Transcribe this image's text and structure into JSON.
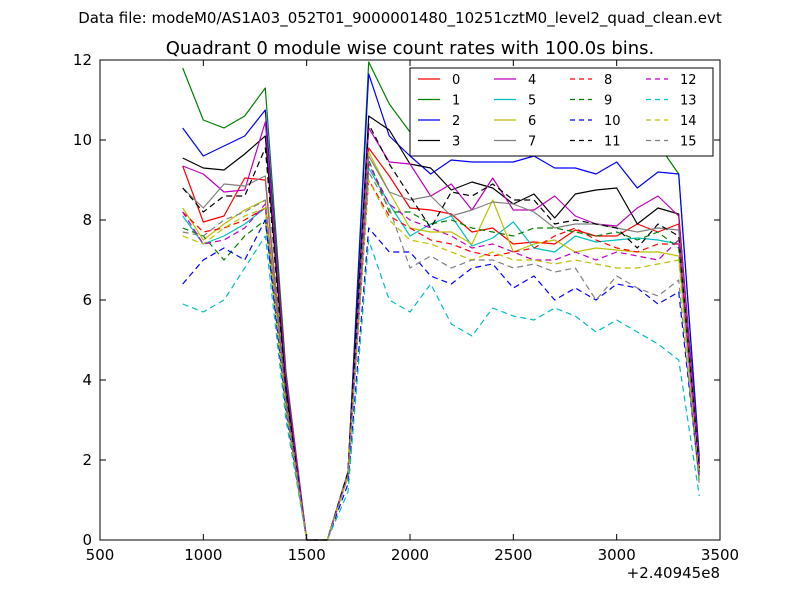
{
  "suptitle": "Data file: modeM0/AS1A03_052T01_9000001480_10251cztM0_level2_quad_clean.evt",
  "chart_data": {
    "type": "line",
    "title": "Quadrant 0 module wise count rates with 100.0s bins.",
    "xlabel": "",
    "ylabel": "",
    "x_offset_label": "+2.40945e8",
    "xlim": [
      500,
      3500
    ],
    "ylim": [
      0,
      12
    ],
    "xticks": [
      500,
      1000,
      1500,
      2000,
      2500,
      3000,
      3500
    ],
    "yticks": [
      0,
      2,
      4,
      6,
      8,
      10,
      12
    ],
    "grid": false,
    "legend_position": "top-right",
    "legend_columns": 4,
    "x": [
      900,
      1000,
      1100,
      1200,
      1300,
      1400,
      1500,
      1600,
      1700,
      1800,
      1900,
      2000,
      2100,
      2200,
      2300,
      2400,
      2500,
      2600,
      2700,
      2800,
      2900,
      3000,
      3100,
      3200,
      3300,
      3400
    ],
    "series": [
      {
        "name": "0",
        "color": "#ff0000",
        "dash": "solid",
        "values": [
          9.35,
          7.95,
          8.1,
          9.05,
          9.0,
          3.5,
          0,
          0,
          1.7,
          9.8,
          9.1,
          8.3,
          8.25,
          8.15,
          7.7,
          7.8,
          7.4,
          7.45,
          7.4,
          7.75,
          7.6,
          7.6,
          7.9,
          7.7,
          7.9,
          1.8
        ]
      },
      {
        "name": "1",
        "color": "#008000",
        "dash": "solid",
        "values": [
          11.8,
          10.5,
          10.3,
          10.6,
          11.3,
          4.2,
          0,
          0,
          1.7,
          11.95,
          10.9,
          10.2,
          9.85,
          9.9,
          9.95,
          10.0,
          9.6,
          9.85,
          10.2,
          9.9,
          9.75,
          9.9,
          9.65,
          9.9,
          9.15,
          2.1
        ]
      },
      {
        "name": "2",
        "color": "#0000ff",
        "dash": "solid",
        "values": [
          10.3,
          9.6,
          9.85,
          10.1,
          10.75,
          4.0,
          0,
          0,
          1.7,
          11.65,
          10.1,
          9.6,
          9.15,
          9.5,
          9.45,
          9.45,
          9.45,
          9.6,
          9.3,
          9.3,
          9.15,
          9.45,
          8.8,
          9.2,
          9.15,
          2.0
        ]
      },
      {
        "name": "3",
        "color": "#000000",
        "dash": "solid",
        "values": [
          9.55,
          9.3,
          9.25,
          9.65,
          10.1,
          3.8,
          0,
          0,
          1.7,
          10.6,
          10.25,
          9.4,
          9.3,
          8.75,
          8.95,
          8.8,
          8.4,
          8.65,
          8.05,
          8.65,
          8.75,
          8.8,
          7.9,
          8.3,
          8.15,
          1.9
        ]
      },
      {
        "name": "4",
        "color": "#bf00bf",
        "dash": "solid",
        "values": [
          9.35,
          9.15,
          8.7,
          8.75,
          10.45,
          4.1,
          0,
          0,
          1.7,
          10.3,
          9.45,
          9.4,
          8.6,
          8.9,
          8.25,
          9.05,
          8.25,
          8.25,
          8.6,
          8.1,
          7.9,
          7.85,
          8.3,
          8.6,
          8.1,
          1.9
        ]
      },
      {
        "name": "5",
        "color": "#00bfbf",
        "dash": "solid",
        "values": [
          8.1,
          7.4,
          7.6,
          7.9,
          8.3,
          3.3,
          0,
          0,
          1.7,
          9.3,
          8.4,
          7.6,
          7.9,
          8.1,
          7.35,
          7.55,
          7.95,
          7.3,
          7.2,
          7.6,
          7.45,
          7.5,
          7.55,
          7.5,
          7.4,
          1.7
        ]
      },
      {
        "name": "6",
        "color": "#bfbf00",
        "dash": "solid",
        "values": [
          8.3,
          7.5,
          7.9,
          8.25,
          8.5,
          3.4,
          0,
          0,
          1.7,
          9.7,
          8.7,
          7.8,
          7.7,
          7.7,
          7.4,
          8.5,
          7.2,
          7.4,
          7.5,
          7.2,
          7.3,
          7.25,
          7.2,
          7.2,
          7.1,
          1.6
        ]
      },
      {
        "name": "7",
        "color": "#808080",
        "dash": "solid",
        "values": [
          8.8,
          8.3,
          8.9,
          8.85,
          9.1,
          3.6,
          0,
          0,
          1.7,
          9.6,
          8.7,
          8.5,
          8.6,
          8.1,
          8.25,
          8.45,
          8.4,
          8.2,
          7.8,
          7.9,
          7.9,
          7.8,
          7.7,
          7.8,
          7.75,
          1.7
        ]
      },
      {
        "name": "8",
        "color": "#ff0000",
        "dash": "dashed",
        "values": [
          8.2,
          7.7,
          7.8,
          8.0,
          8.3,
          3.4,
          0,
          0,
          1.6,
          9.0,
          8.1,
          7.8,
          7.5,
          7.4,
          7.2,
          7.1,
          7.2,
          7.3,
          7.6,
          7.8,
          7.5,
          7.3,
          7.2,
          7.4,
          7.4,
          1.6
        ]
      },
      {
        "name": "9",
        "color": "#008000",
        "dash": "dashed",
        "values": [
          7.8,
          7.6,
          7.0,
          7.6,
          8.0,
          3.3,
          0,
          0,
          1.6,
          9.5,
          8.2,
          8.2,
          7.9,
          8.0,
          7.8,
          7.7,
          7.6,
          7.8,
          7.8,
          7.7,
          7.6,
          7.7,
          7.5,
          7.7,
          7.3,
          1.6
        ]
      },
      {
        "name": "10",
        "color": "#0000ff",
        "dash": "dashed",
        "values": [
          6.4,
          7.0,
          7.3,
          7.0,
          8.0,
          3.2,
          0,
          0,
          1.4,
          7.8,
          7.2,
          7.2,
          6.6,
          6.4,
          6.8,
          6.9,
          6.3,
          6.6,
          6.0,
          6.3,
          6.0,
          6.4,
          6.3,
          5.9,
          6.2,
          1.5
        ]
      },
      {
        "name": "11",
        "color": "#000000",
        "dash": "dashed",
        "values": [
          8.8,
          8.2,
          8.6,
          8.6,
          9.8,
          3.7,
          0,
          0,
          1.7,
          10.4,
          9.4,
          8.6,
          7.8,
          8.7,
          8.6,
          8.9,
          8.5,
          8.5,
          7.9,
          8.0,
          7.9,
          7.8,
          7.3,
          7.9,
          7.6,
          1.8
        ]
      },
      {
        "name": "12",
        "color": "#bf00bf",
        "dash": "dashed",
        "values": [
          8.2,
          7.4,
          7.5,
          7.8,
          8.4,
          3.4,
          0,
          0,
          1.6,
          9.4,
          8.4,
          8.0,
          7.8,
          7.6,
          7.3,
          7.4,
          7.2,
          7.0,
          7.0,
          7.2,
          7.0,
          7.2,
          7.1,
          7.0,
          7.5,
          1.6
        ]
      },
      {
        "name": "13",
        "color": "#00bfbf",
        "dash": "dashed",
        "values": [
          5.9,
          5.7,
          6.0,
          6.8,
          7.6,
          3.0,
          0,
          0,
          1.2,
          7.5,
          6.0,
          5.7,
          6.4,
          5.4,
          5.1,
          5.8,
          5.6,
          5.5,
          5.8,
          5.6,
          5.2,
          5.5,
          5.2,
          4.9,
          4.5,
          1.1
        ]
      },
      {
        "name": "14",
        "color": "#bfbf00",
        "dash": "dashed",
        "values": [
          7.6,
          7.4,
          7.8,
          8.1,
          8.3,
          3.3,
          0,
          0,
          1.6,
          9.0,
          8.0,
          7.5,
          7.4,
          7.2,
          7.0,
          7.2,
          7.0,
          7.0,
          6.9,
          7.0,
          6.9,
          6.8,
          6.8,
          6.9,
          7.0,
          1.5
        ]
      },
      {
        "name": "15",
        "color": "#808080",
        "dash": "dashed",
        "values": [
          7.7,
          7.6,
          8.0,
          8.2,
          8.5,
          3.4,
          0,
          0,
          1.6,
          9.2,
          8.3,
          6.8,
          7.1,
          6.8,
          7.0,
          7.0,
          6.8,
          6.9,
          6.7,
          6.8,
          6.0,
          6.6,
          6.3,
          6.1,
          6.5,
          1.4
        ]
      }
    ]
  }
}
